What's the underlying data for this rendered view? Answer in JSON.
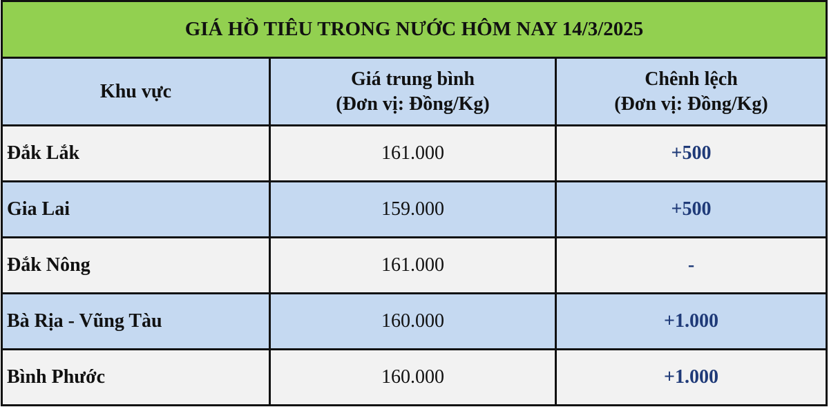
{
  "title": "GIÁ HỒ TIÊU TRONG NƯỚC HÔM NAY 14/3/2025",
  "headers": {
    "region": "Khu vực",
    "price_line1": "Giá trung bình",
    "price_line2": "(Đơn vị: Đồng/Kg)",
    "change_line1": "Chênh lệch",
    "change_line2": "(Đơn vị: Đồng/Kg)"
  },
  "rows": [
    {
      "region": "Đắk Lắk",
      "price": "161.000",
      "change": "+500"
    },
    {
      "region": "Gia Lai",
      "price": "159.000",
      "change": "+500"
    },
    {
      "region": "Đắk Nông",
      "price": "161.000",
      "change": "-"
    },
    {
      "region": "Bà Rịa - Vũng Tàu",
      "price": "160.000",
      "change": "+1.000"
    },
    {
      "region": "Bình Phước",
      "price": "160.000",
      "change": "+1.000"
    }
  ],
  "colors": {
    "title_bg": "#92D050",
    "header_bg": "#C5D9F1",
    "alt_row_bg": "#F2F2F2",
    "change_text": "#1F3A78"
  }
}
